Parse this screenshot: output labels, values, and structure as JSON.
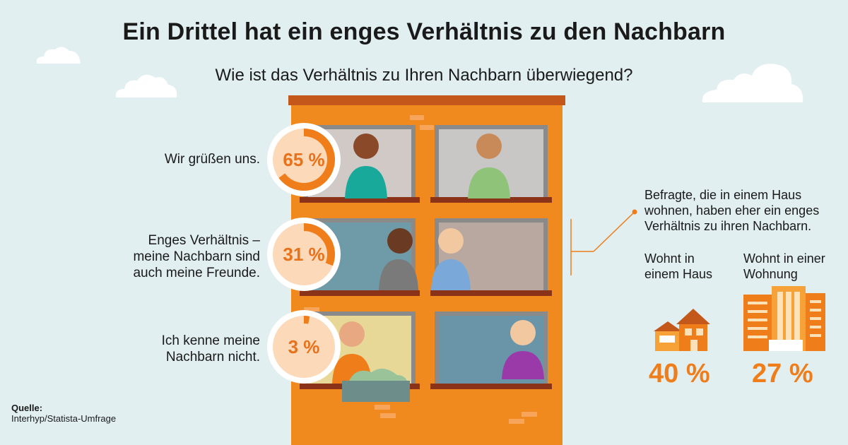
{
  "header": {
    "title": "Ein Drittel hat ein enges Verhältnis zu den Nachbarn",
    "subtitle": "Wie ist das Verhältnis zu Ihren Nachbarn überwiegend?"
  },
  "chart_data": [
    {
      "type": "pie",
      "categories": [
        "Wir grüßen uns.",
        "Enges Verhältnis – meine Nachbarn sind auch meine Freunde.",
        "Ich kenne meine Nachbarn nicht."
      ],
      "values": [
        65,
        31,
        3
      ],
      "value_labels": [
        "65 %",
        "31 %",
        "3 %"
      ],
      "unit": "%"
    },
    {
      "type": "bar",
      "title": "Befragte, die in einem Haus wohnen, haben eher ein enges Verhältnis zu ihren Nachbarn.",
      "categories": [
        "Wohnt in einem Haus",
        "Wohnt in einer Wohnung"
      ],
      "values": [
        40,
        27
      ],
      "value_labels": [
        "40 %",
        "27 %"
      ],
      "unit": "%"
    }
  ],
  "answers": [
    {
      "label": "Wir grüßen uns.",
      "value_text": "65 %"
    },
    {
      "label": "Enges Verhältnis –\nmeine Nachbarn sind\nauch meine Freunde.",
      "value_text": "31 %"
    },
    {
      "label": "Ich kenne meine\nNachbarn nicht.",
      "value_text": "3 %"
    }
  ],
  "comparison": {
    "note": "Befragte, die in einem Haus\nwohnen, haben eher ein enges\nVerhältnis zu ihren Nachbarn.",
    "house_label": "Wohnt in\neinem Haus",
    "house_value": "40 %",
    "flat_label": "Wohnt in einer\nWohnung",
    "flat_value": "27 %"
  },
  "source": {
    "label": "Quelle:",
    "text": "Interhyp/Statista-Umfrage"
  },
  "colors": {
    "accent": "#ef7d1a",
    "donut_track": "#fcd9b8",
    "building": "#f08a1e",
    "background": "#e2eff1"
  }
}
